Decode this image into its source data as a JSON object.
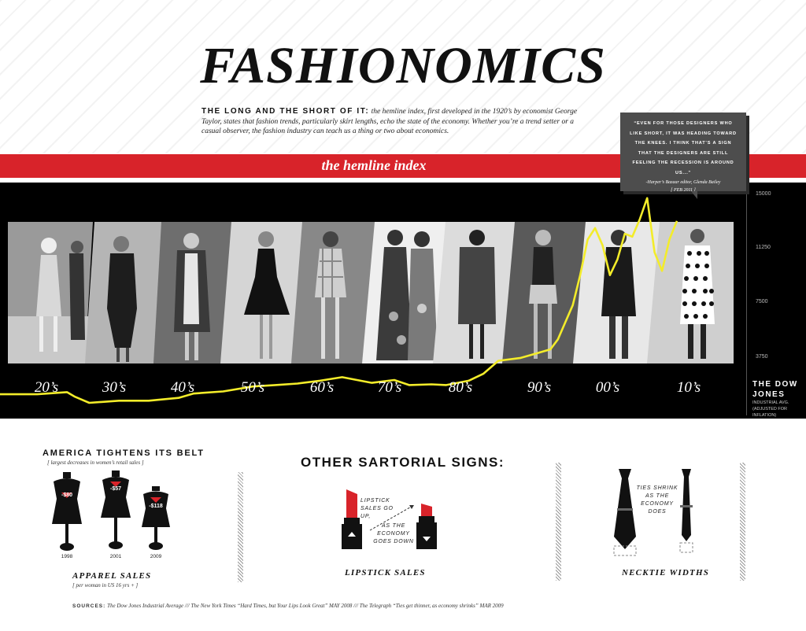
{
  "header": {
    "title": "FASHIONOMICS",
    "intro_lead": "THE LONG AND THE SHORT OF IT:",
    "intro_text": "the hemline index, first developed in the 1920’s by economist George Taylor, states that fashion trends, particularly skirt lengths, echo the state of the economy. Whether you’re a trend setter or a casual observer, the fashion industry can teach us a thing or two about economics."
  },
  "banner": {
    "label": "the hemline index"
  },
  "quote": {
    "text": "“EVEN FOR THOSE DESIGNERS WHO LIKE SHORT, IT WAS HEADING TOWARD THE KNEES. I THINK THAT’S A SIGN THAT THE DESIGNERS ARE STILL FEELING THE RECESSION IS AROUND US...”",
    "attribution": "-Harper’s Bazaar editor, Glenda Bailey",
    "date": "[ FEB 2011 ]"
  },
  "decades": [
    "20’s",
    "30’s",
    "40’s",
    "50’s",
    "60’s",
    "70’s",
    "80’s",
    "90’s",
    "00’s",
    "10’s"
  ],
  "axis": {
    "ticks": [
      "15000",
      "11250",
      "7500",
      "3750"
    ],
    "title": "THE DOW JONES",
    "subtitle": "INDUSTRIAL AVG.",
    "note": "(ADJUSTED FOR INFLATION)"
  },
  "chart_data": {
    "type": "line",
    "title": "",
    "series": [
      {
        "name": "THE DOW JONES",
        "points": [
          [
            1920,
            1150
          ],
          [
            1925,
            1150
          ],
          [
            1929,
            1300
          ],
          [
            1930,
            1000
          ],
          [
            1932,
            550
          ],
          [
            1936,
            700
          ],
          [
            1940,
            700
          ],
          [
            1944,
            900
          ],
          [
            1946,
            1200
          ],
          [
            1950,
            1350
          ],
          [
            1954,
            1700
          ],
          [
            1957,
            1800
          ],
          [
            1960,
            1900
          ],
          [
            1963,
            2100
          ],
          [
            1966,
            2350
          ],
          [
            1970,
            1950
          ],
          [
            1973,
            2150
          ],
          [
            1975,
            1800
          ],
          [
            1978,
            1850
          ],
          [
            1980,
            1800
          ],
          [
            1983,
            2100
          ],
          [
            1985,
            2600
          ],
          [
            1987,
            3500
          ],
          [
            1990,
            3700
          ],
          [
            1992,
            4000
          ],
          [
            1994,
            4300
          ],
          [
            1995,
            5000
          ],
          [
            1996,
            6200
          ],
          [
            1997,
            7400
          ],
          [
            1998,
            9500
          ],
          [
            1999,
            12000
          ],
          [
            2000,
            12800
          ],
          [
            2001,
            11600
          ],
          [
            2002,
            9500
          ],
          [
            2003,
            10600
          ],
          [
            2004,
            12400
          ],
          [
            2005,
            12200
          ],
          [
            2006,
            13400
          ],
          [
            2007,
            14900
          ],
          [
            2008,
            11100
          ],
          [
            2009,
            9800
          ],
          [
            2010,
            12000
          ],
          [
            2011,
            13300
          ]
        ]
      }
    ],
    "xlim": [
      1920,
      2011
    ],
    "ylim": [
      0,
      15000
    ],
    "yticks": [
      3750,
      7500,
      11250,
      15000
    ],
    "color": "#f3ec2a"
  },
  "belt": {
    "title": "AMERICA TIGHTENS ITS BELT",
    "subtitle": "[ largest decreases in women’s retail sales ]",
    "forms": [
      {
        "label": "-$80",
        "year": "1998"
      },
      {
        "label": "-$57",
        "year": "2001"
      },
      {
        "label": "-$118",
        "year": "2009"
      }
    ],
    "caption": "APPAREL SALES",
    "caption_sub": "[ per woman in US 16 yrs + ]"
  },
  "signs": {
    "title": "OTHER SARTORIAL SIGNS:",
    "lipstick_note_1": "LIPSTICK SALES GO UP,",
    "lipstick_note_2": "AS THE ECONOMY GOES DOWN",
    "lipstick_caption": "LIPSTICK SALES",
    "tie_note": "TIES SHRINK AS THE ECONOMY DOES",
    "tie_caption": "NECKTIE WIDTHS"
  },
  "sources": {
    "label": "SOURCES:",
    "text": "The Dow Jones Industrial Average /// The New York Times “Hard Times, but Your Lips Look Great” MAY 2008 /// The Telegraph “Ties get thinner, as economy shrinks” MAR 2009"
  },
  "colors": {
    "red": "#d8232a",
    "yellow": "#f3ec2a",
    "quote_bg": "#4d4d4d"
  }
}
